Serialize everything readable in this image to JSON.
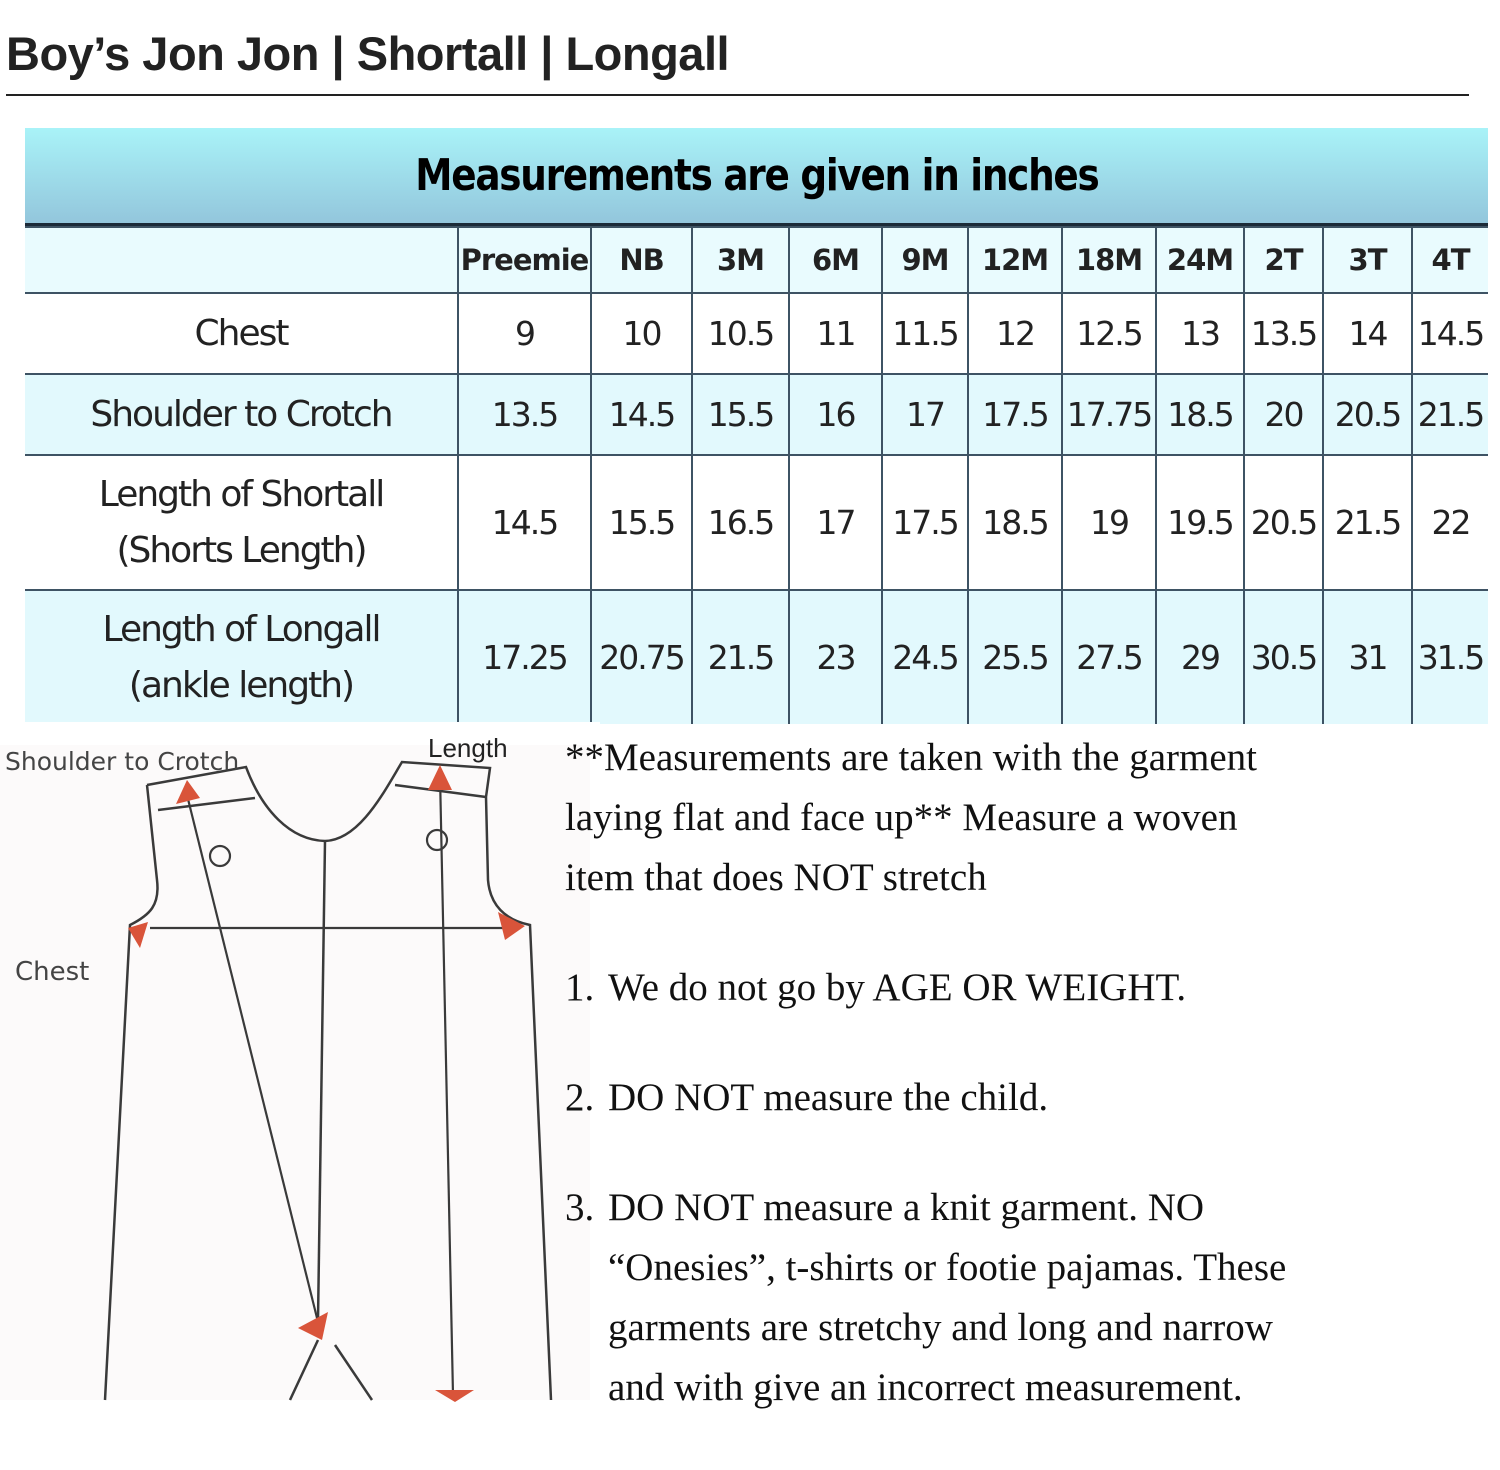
{
  "title": "Boy’s Jon Jon | Shortall | Longall",
  "table": {
    "banner": "Measurements are given in inches",
    "sizes": [
      "Preemie",
      "NB",
      "3M",
      "6M",
      "9M",
      "12M",
      "18M",
      "24M",
      "2T",
      "3T",
      "4T"
    ],
    "rows": [
      {
        "label": [
          "Chest"
        ],
        "values": [
          "9",
          "10",
          "10.5",
          "11",
          "11.5",
          "12",
          "12.5",
          "13",
          "13.5",
          "14",
          "14.5"
        ]
      },
      {
        "label": [
          "Shoulder to Crotch"
        ],
        "values": [
          "13.5",
          "14.5",
          "15.5",
          "16",
          "17",
          "17.5",
          "17.75",
          "18.5",
          "20",
          "20.5",
          "21.5"
        ]
      },
      {
        "label": [
          "Length of Shortall",
          "(Shorts Length)"
        ],
        "values": [
          "14.5",
          "15.5",
          "16.5",
          "17",
          "17.5",
          "18.5",
          "19",
          "19.5",
          "20.5",
          "21.5",
          "22"
        ]
      },
      {
        "label": [
          "Length of Longall",
          "(ankle length)"
        ],
        "values": [
          "17.25",
          "20.75",
          "21.5",
          "23",
          "24.5",
          "25.5",
          "27.5",
          "29",
          "30.5",
          "31",
          "31.5"
        ]
      }
    ]
  },
  "diagram": {
    "labels": {
      "shoulder": "Shoulder to Crotch",
      "length": "Length",
      "chest": "Chest"
    },
    "arrow_color": "#d9543a"
  },
  "notes": {
    "intro": [
      "**Measurements are taken with the garment",
      "laying flat and face up** Measure a woven",
      "item that does NOT stretch"
    ],
    "items": [
      {
        "num": "1.",
        "lines": [
          "We do not go by AGE OR WEIGHT."
        ]
      },
      {
        "num": "2.",
        "lines": [
          "DO NOT measure the child."
        ]
      },
      {
        "num": "3.",
        "lines": [
          "DO NOT measure a knit garment. NO",
          "“Onesies”, t-shirts or footie pajamas. These",
          "garments are stretchy and long and narrow",
          "and with give an incorrect measurement."
        ]
      }
    ]
  }
}
